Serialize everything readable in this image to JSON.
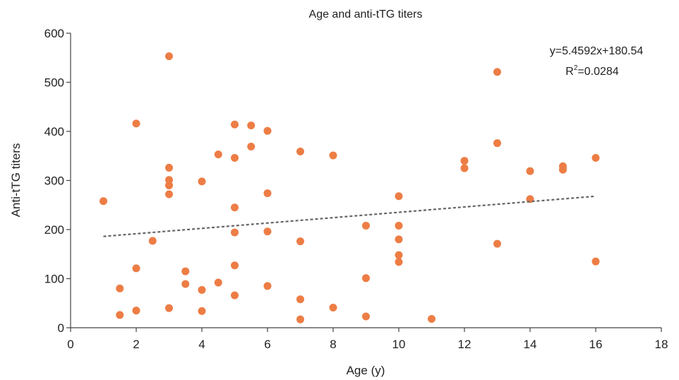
{
  "chart_data": {
    "type": "scatter",
    "title": "Age and anti-tTG titers",
    "xlabel": "Age (y)",
    "ylabel": "Anti-tTG titers",
    "xlim": [
      0,
      18
    ],
    "ylim": [
      0,
      600
    ],
    "x_ticks": [
      0,
      2,
      4,
      6,
      8,
      10,
      12,
      14,
      16,
      18
    ],
    "y_ticks": [
      0,
      100,
      200,
      300,
      400,
      500,
      600
    ],
    "grid": false,
    "point_color": "#ED7D45",
    "trendline_color": "#666666",
    "series": [
      {
        "points": [
          [
            1,
            258
          ],
          [
            1.5,
            80
          ],
          [
            1.5,
            26
          ],
          [
            2,
            416
          ],
          [
            2,
            121
          ],
          [
            2,
            35
          ],
          [
            2.5,
            177
          ],
          [
            3,
            553
          ],
          [
            3,
            326
          ],
          [
            3,
            301
          ],
          [
            3,
            290
          ],
          [
            3,
            272
          ],
          [
            3,
            40
          ],
          [
            3.5,
            115
          ],
          [
            3.5,
            89
          ],
          [
            4,
            298
          ],
          [
            4,
            77
          ],
          [
            4,
            34
          ],
          [
            4.5,
            353
          ],
          [
            4.5,
            92
          ],
          [
            5,
            414
          ],
          [
            5,
            346
          ],
          [
            5,
            245
          ],
          [
            5,
            194
          ],
          [
            5,
            127
          ],
          [
            5,
            66
          ],
          [
            5.5,
            412
          ],
          [
            5.5,
            369
          ],
          [
            6,
            401
          ],
          [
            6,
            274
          ],
          [
            6,
            196
          ],
          [
            6,
            85
          ],
          [
            7,
            359
          ],
          [
            7,
            176
          ],
          [
            7,
            58
          ],
          [
            7,
            17
          ],
          [
            8,
            351
          ],
          [
            8,
            41
          ],
          [
            9,
            208
          ],
          [
            9,
            101
          ],
          [
            9,
            23
          ],
          [
            10,
            268
          ],
          [
            10,
            208
          ],
          [
            10,
            180
          ],
          [
            10,
            148
          ],
          [
            10,
            134
          ],
          [
            11,
            18
          ],
          [
            12,
            340
          ],
          [
            12,
            325
          ],
          [
            13,
            521
          ],
          [
            13,
            376
          ],
          [
            13,
            171
          ],
          [
            14,
            319
          ],
          [
            14,
            262
          ],
          [
            15,
            329
          ],
          [
            15,
            322
          ],
          [
            16,
            346
          ],
          [
            16,
            135
          ]
        ]
      }
    ],
    "trendline": {
      "slope": 5.4592,
      "intercept": 180.54,
      "x_range": [
        1,
        16
      ],
      "equation_label": "y=5.4592x+180.54",
      "r2_prefix": "R",
      "r2_sup": "2",
      "r2_value": "=0.0284"
    }
  }
}
